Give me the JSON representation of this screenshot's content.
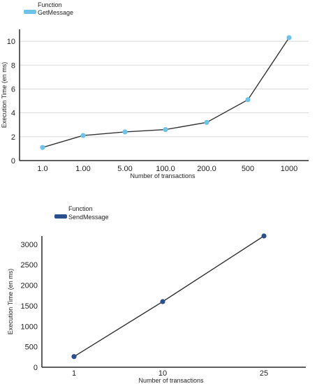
{
  "chart_data": [
    {
      "type": "line",
      "legend_title": "Function",
      "categories": [
        "1.0",
        "1.00",
        "5.00",
        "100.0",
        "200.0",
        "500",
        "1000"
      ],
      "series": [
        {
          "name": "GetMessage",
          "values": [
            1.1,
            2.1,
            2.4,
            2.6,
            3.2,
            5.1,
            10.3
          ]
        }
      ],
      "xlabel": "Number of transactions",
      "ylabel": "Execution Time (en ms)",
      "ylim": [
        0,
        11
      ],
      "yticks": [
        0,
        2,
        4,
        6,
        8,
        10
      ],
      "grid": true,
      "legend_position": "top-left",
      "series_color": "#6ec4e8"
    },
    {
      "type": "line",
      "legend_title": "Function",
      "categories": [
        "1",
        "10",
        "25"
      ],
      "series": [
        {
          "name": "SendMessage",
          "values": [
            260,
            1600,
            3200
          ]
        }
      ],
      "xlabel": "Number of transactions",
      "ylabel": "Execution Time (en ms)",
      "ylim": [
        0,
        3200
      ],
      "yticks": [
        0,
        500,
        1000,
        1500,
        2000,
        2500,
        3000
      ],
      "grid": false,
      "legend_position": "top-left",
      "series_color": "#2b4f8c"
    }
  ]
}
